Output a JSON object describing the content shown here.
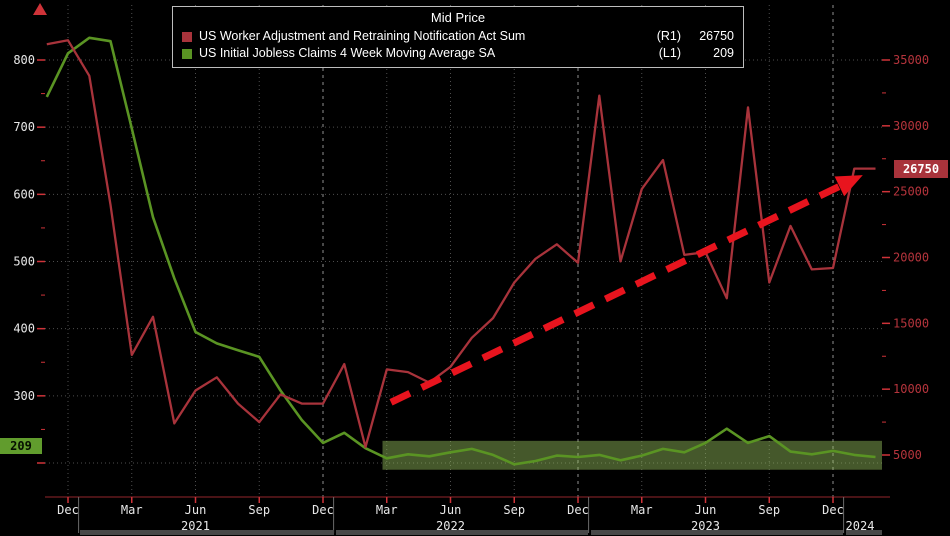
{
  "legend": {
    "title": "Mid Price",
    "series": [
      {
        "label": "US Worker Adjustment and Retraining Notification Act Sum",
        "axis": "(R1)",
        "value": "26750",
        "color": "#a8333b"
      },
      {
        "label": "US Initial Jobless Claims 4 Week Moving Average SA",
        "axis": "(L1)",
        "value": "209",
        "color": "#5a9423"
      }
    ]
  },
  "badges": {
    "left": {
      "text": "209",
      "color": "#619c2d"
    },
    "right": {
      "text": "26750",
      "color": "#a8333b"
    }
  },
  "chart_data": {
    "type": "line",
    "title": "Mid Price",
    "background": "#000000",
    "grid": true,
    "legend_position": "top-center",
    "categories": [
      "Nov-20",
      "Dec-20",
      "Jan-21",
      "Feb-21",
      "Mar-21",
      "Apr-21",
      "May-21",
      "Jun-21",
      "Jul-21",
      "Aug-21",
      "Sep-21",
      "Oct-21",
      "Nov-21",
      "Dec-21",
      "Jan-22",
      "Feb-22",
      "Mar-22",
      "Apr-22",
      "May-22",
      "Jun-22",
      "Jul-22",
      "Aug-22",
      "Sep-22",
      "Oct-22",
      "Nov-22",
      "Dec-22",
      "Jan-23",
      "Feb-23",
      "Mar-23",
      "Apr-23",
      "May-23",
      "Jun-23",
      "Jul-23",
      "Aug-23",
      "Sep-23",
      "Oct-23",
      "Nov-23",
      "Dec-23",
      "Jan-24",
      "Feb-24"
    ],
    "series": [
      {
        "name": "US Worker Adjustment and Retraining Notification Act Sum",
        "axis": "right",
        "color": "#a8333b",
        "current_value": 26750,
        "values": [
          36200,
          36500,
          33800,
          24000,
          12600,
          15500,
          7400,
          9900,
          10900,
          8900,
          7500,
          9600,
          8900,
          8900,
          11900,
          5600,
          11500,
          11300,
          10500,
          11700,
          13900,
          15400,
          18100,
          19900,
          21000,
          19600,
          32300,
          19700,
          25200,
          27400,
          20200,
          20400,
          16900,
          31400,
          18100,
          22400,
          19100,
          19200,
          26750,
          26750
        ]
      },
      {
        "name": "US Initial Jobless Claims 4 Week Moving Average SA",
        "axis": "left",
        "color": "#5a9423",
        "current_value": 209,
        "values": [
          745,
          810,
          833,
          828,
          698,
          566,
          475,
          395,
          378,
          368,
          358,
          308,
          264,
          230,
          245,
          222,
          207,
          213,
          210,
          216,
          221,
          212,
          198,
          203,
          211,
          209,
          212,
          204,
          211,
          221,
          216,
          230,
          251,
          230,
          240,
          217,
          213,
          218,
          212,
          209
        ]
      }
    ],
    "left_axis": {
      "ticks": [
        200,
        300,
        400,
        500,
        600,
        700,
        800
      ],
      "range": [
        152,
        882
      ],
      "label_color": "#e8e8e8"
    },
    "right_axis": {
      "ticks": [
        5000,
        10000,
        15000,
        20000,
        25000,
        30000,
        35000
      ],
      "range": [
        1800,
        39200
      ],
      "label_color": "#b5343c"
    },
    "x_axis": {
      "quarter_labels": [
        "Dec",
        "Mar",
        "Jun",
        "Sep",
        "Dec",
        "Mar",
        "Jun",
        "Sep",
        "Dec",
        "Mar",
        "Jun",
        "Sep",
        "Dec"
      ],
      "year_labels": [
        "2021",
        "2022",
        "2023",
        "2024"
      ]
    },
    "annotations": {
      "trend_arrow": {
        "axis": "right",
        "from_index": 16.2,
        "from_value": 9000,
        "to_index": 37.3,
        "to_value": 25400,
        "color": "#e8141e",
        "style": "dashed"
      },
      "highlight_band": {
        "axis": "left",
        "value_low": 190,
        "value_high": 233,
        "from_index": 15.8,
        "color": "rgba(152,196,96,0.45)"
      }
    }
  }
}
